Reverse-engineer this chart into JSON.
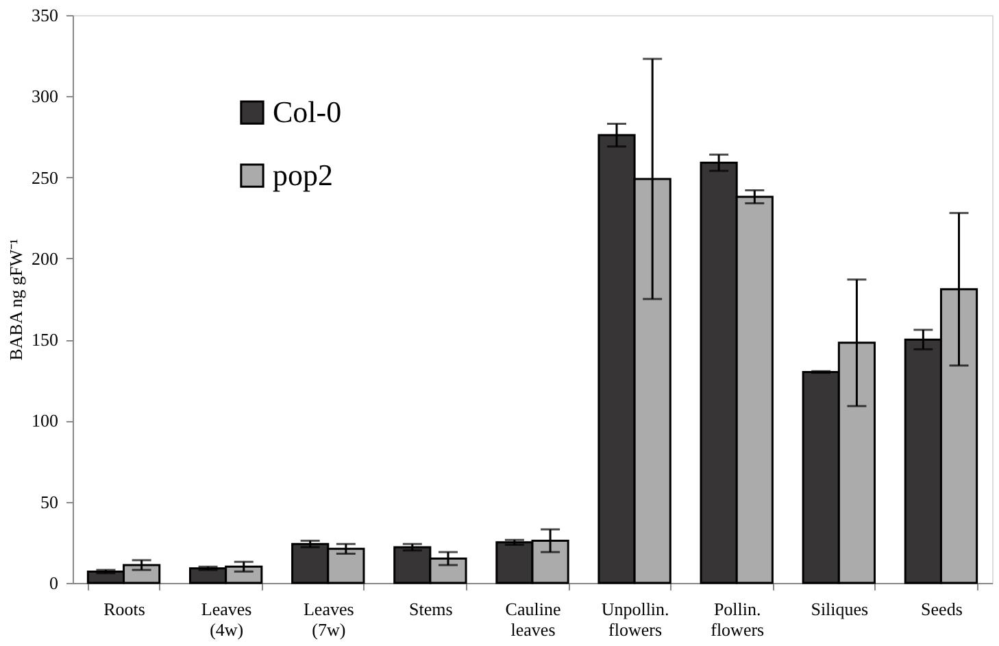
{
  "chart_data": {
    "type": "bar",
    "ylabel": "BABA ng gFW⁻¹",
    "categories": [
      "Roots",
      "Leaves (4w)",
      "Leaves (7w)",
      "Stems",
      "Cauline leaves",
      "Unpollin. flowers",
      "Pollin. flowers",
      "Siliques",
      "Seeds"
    ],
    "series": [
      {
        "name": "Col-0",
        "color": "#383536",
        "values": [
          7,
          9,
          24,
          22,
          25,
          276,
          259,
          130,
          150
        ],
        "errors": [
          1,
          1,
          2,
          2,
          1.5,
          7,
          5,
          0.5,
          6
        ]
      },
      {
        "name": "pop2",
        "color": "#ababab",
        "values": [
          11,
          10,
          21,
          15,
          26,
          249,
          238,
          148,
          181
        ],
        "errors": [
          3,
          3,
          3,
          4,
          7,
          74,
          4,
          39,
          47
        ]
      }
    ],
    "ylim": [
      0,
      350
    ],
    "yticks": [
      0,
      50,
      100,
      150,
      200,
      250,
      300,
      350
    ],
    "grid": false,
    "legend": "top left"
  }
}
